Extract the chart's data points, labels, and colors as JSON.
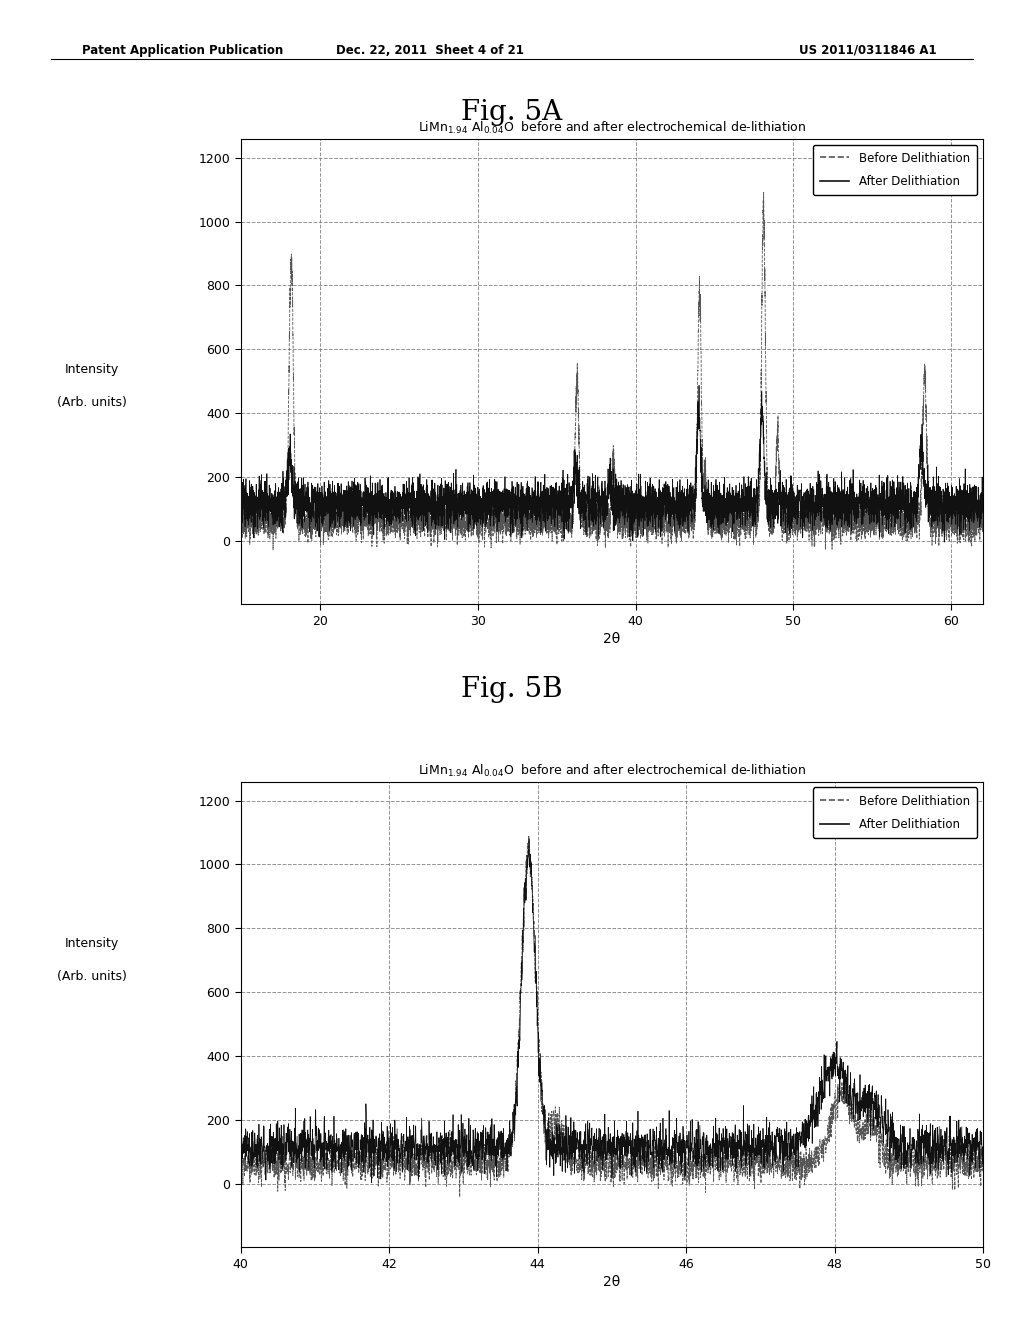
{
  "fig_title_top_left": "Patent Application Publication",
  "fig_title_top_mid": "Dec. 22, 2011  Sheet 4 of 21",
  "fig_title_top_right": "US 2011/0311846 A1",
  "fig5A_label": "Fig. 5A",
  "fig5B_label": "Fig. 5B",
  "chart_title": "LiMn$_{1.94}$ Al$_{0.04}$O  before and after electrochemical de-lithiation",
  "xlabel": "2θ",
  "ylabel_line1": "Intensity",
  "ylabel_line2": "(Arb. units)",
  "legend_before": "Before Delithiation",
  "legend_after": "After Delithiation",
  "fig5A_xlim": [
    15,
    62
  ],
  "fig5A_ylim": [
    -200,
    1260
  ],
  "fig5A_xticks": [
    20,
    30,
    40,
    50,
    60
  ],
  "fig5A_yticks": [
    0,
    200,
    400,
    600,
    800,
    1000,
    1200
  ],
  "fig5B_xlim": [
    40,
    50
  ],
  "fig5B_ylim": [
    -200,
    1260
  ],
  "fig5B_xticks": [
    40,
    42,
    44,
    46,
    48,
    50
  ],
  "fig5B_yticks": [
    0,
    200,
    400,
    600,
    800,
    1000,
    1200
  ],
  "background_color": "#ffffff",
  "grid_color": "#777777",
  "before_color": "#555555",
  "after_color": "#111111",
  "seed_5A": 42,
  "seed_5B": 99
}
